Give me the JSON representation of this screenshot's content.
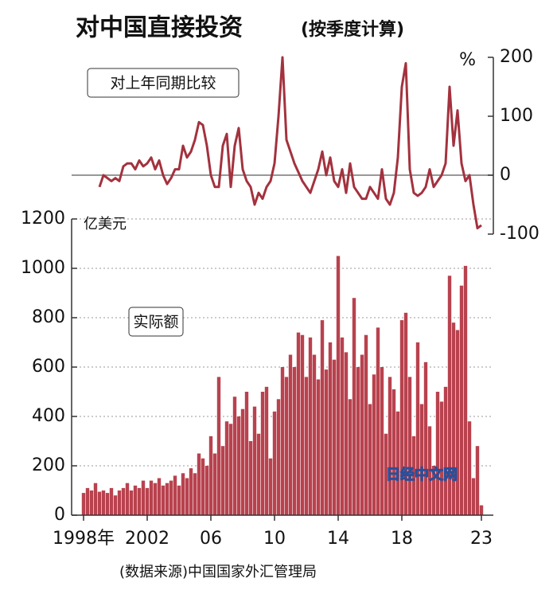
{
  "title": "对中国直接投资",
  "subtitle": "(按季度计算)",
  "source": "(数据来源)中国国家外汇管理局",
  "watermark": "日经中文网",
  "chart_data": [
    {
      "type": "line",
      "label": "对上年同期比较",
      "unit": "%",
      "color": "#a3323e",
      "y_axis_side": "right",
      "xlim": [
        1997.25,
        2023.75
      ],
      "ylim": [
        -100,
        200
      ],
      "yticks": [
        -100,
        0,
        100,
        200
      ],
      "zero_line": true,
      "x": [
        1998,
        1998.25,
        1998.5,
        1998.75,
        1999,
        1999.25,
        1999.5,
        1999.75,
        2000,
        2000.25,
        2000.5,
        2000.75,
        2001,
        2001.25,
        2001.5,
        2001.75,
        2002,
        2002.25,
        2002.5,
        2002.75,
        2003,
        2003.25,
        2003.5,
        2003.75,
        2004,
        2004.25,
        2004.5,
        2004.75,
        2005,
        2005.25,
        2005.5,
        2005.75,
        2006,
        2006.25,
        2006.5,
        2006.75,
        2007,
        2007.25,
        2007.5,
        2007.75,
        2008,
        2008.25,
        2008.5,
        2008.75,
        2009,
        2009.25,
        2009.5,
        2009.75,
        2010,
        2010.25,
        2010.5,
        2010.75,
        2011,
        2011.25,
        2011.5,
        2011.75,
        2012,
        2012.25,
        2012.5,
        2012.75,
        2013,
        2013.25,
        2013.5,
        2013.75,
        2014,
        2014.25,
        2014.5,
        2014.75,
        2015,
        2015.25,
        2015.5,
        2015.75,
        2016,
        2016.25,
        2016.5,
        2016.75,
        2017,
        2017.25,
        2017.5,
        2017.75,
        2018,
        2018.25,
        2018.5,
        2018.75,
        2019,
        2019.25,
        2019.5,
        2019.75,
        2020,
        2020.25,
        2020.5,
        2020.75,
        2021,
        2021.25,
        2021.5,
        2021.75,
        2022,
        2022.25,
        2022.5,
        2022.75,
        2023
      ],
      "values": [
        null,
        null,
        null,
        null,
        -20,
        0,
        -5,
        -10,
        -5,
        -10,
        15,
        20,
        20,
        10,
        25,
        15,
        20,
        30,
        10,
        25,
        0,
        -15,
        -5,
        10,
        10,
        50,
        30,
        40,
        60,
        90,
        85,
        50,
        0,
        -20,
        -20,
        50,
        70,
        -20,
        50,
        80,
        10,
        -10,
        -20,
        -50,
        -30,
        -40,
        -20,
        -10,
        20,
        100,
        200,
        60,
        40,
        20,
        5,
        -10,
        -20,
        -30,
        -10,
        10,
        40,
        0,
        30,
        -10,
        -20,
        10,
        -30,
        20,
        -20,
        -30,
        -40,
        -40,
        -20,
        -30,
        -40,
        10,
        -40,
        -50,
        -30,
        30,
        150,
        190,
        10,
        -30,
        -35,
        -30,
        -20,
        10,
        -20,
        -10,
        0,
        20,
        150,
        50,
        110,
        20,
        -10,
        0,
        -50,
        -90,
        -85
      ]
    },
    {
      "type": "bar",
      "label": "实际额",
      "unit": "亿美元",
      "color": "#b8424e",
      "grid": true,
      "xlim": [
        1997.25,
        2023.75
      ],
      "ylim": [
        0,
        1200
      ],
      "yticks": [
        0,
        200,
        400,
        600,
        800,
        1000,
        1200
      ],
      "xticks": [
        {
          "value": 1998,
          "label": "1998年"
        },
        2002,
        {
          "value": 2006,
          "label": "06"
        },
        {
          "value": 2010,
          "label": "10"
        },
        {
          "value": 2014,
          "label": "14"
        },
        {
          "value": 2018,
          "label": "18"
        },
        {
          "value": 2023,
          "label": "23"
        }
      ],
      "x": [
        1998,
        1998.25,
        1998.5,
        1998.75,
        1999,
        1999.25,
        1999.5,
        1999.75,
        2000,
        2000.25,
        2000.5,
        2000.75,
        2001,
        2001.25,
        2001.5,
        2001.75,
        2002,
        2002.25,
        2002.5,
        2002.75,
        2003,
        2003.25,
        2003.5,
        2003.75,
        2004,
        2004.25,
        2004.5,
        2004.75,
        2005,
        2005.25,
        2005.5,
        2005.75,
        2006,
        2006.25,
        2006.5,
        2006.75,
        2007,
        2007.25,
        2007.5,
        2007.75,
        2008,
        2008.25,
        2008.5,
        2008.75,
        2009,
        2009.25,
        2009.5,
        2009.75,
        2010,
        2010.25,
        2010.5,
        2010.75,
        2011,
        2011.25,
        2011.5,
        2011.75,
        2012,
        2012.25,
        2012.5,
        2012.75,
        2013,
        2013.25,
        2013.5,
        2013.75,
        2014,
        2014.25,
        2014.5,
        2014.75,
        2015,
        2015.25,
        2015.5,
        2015.75,
        2016,
        2016.25,
        2016.5,
        2016.75,
        2017,
        2017.25,
        2017.5,
        2017.75,
        2018,
        2018.25,
        2018.5,
        2018.75,
        2019,
        2019.25,
        2019.5,
        2019.75,
        2020,
        2020.25,
        2020.5,
        2020.75,
        2021,
        2021.25,
        2021.5,
        2021.75,
        2022,
        2022.25,
        2022.5,
        2022.75,
        2023
      ],
      "values": [
        90,
        110,
        100,
        130,
        95,
        100,
        90,
        110,
        80,
        100,
        110,
        130,
        100,
        120,
        110,
        140,
        110,
        140,
        130,
        150,
        120,
        130,
        140,
        160,
        120,
        170,
        150,
        190,
        170,
        250,
        230,
        200,
        320,
        250,
        560,
        280,
        380,
        370,
        480,
        400,
        430,
        500,
        300,
        440,
        330,
        500,
        520,
        230,
        420,
        470,
        600,
        560,
        650,
        600,
        740,
        730,
        560,
        720,
        650,
        550,
        790,
        590,
        700,
        630,
        1050,
        720,
        660,
        470,
        880,
        600,
        650,
        730,
        450,
        570,
        760,
        600,
        330,
        560,
        510,
        420,
        790,
        820,
        560,
        320,
        700,
        450,
        620,
        360,
        200,
        500,
        460,
        520,
        970,
        780,
        750,
        930,
        1010,
        380,
        150,
        280,
        40
      ]
    }
  ]
}
